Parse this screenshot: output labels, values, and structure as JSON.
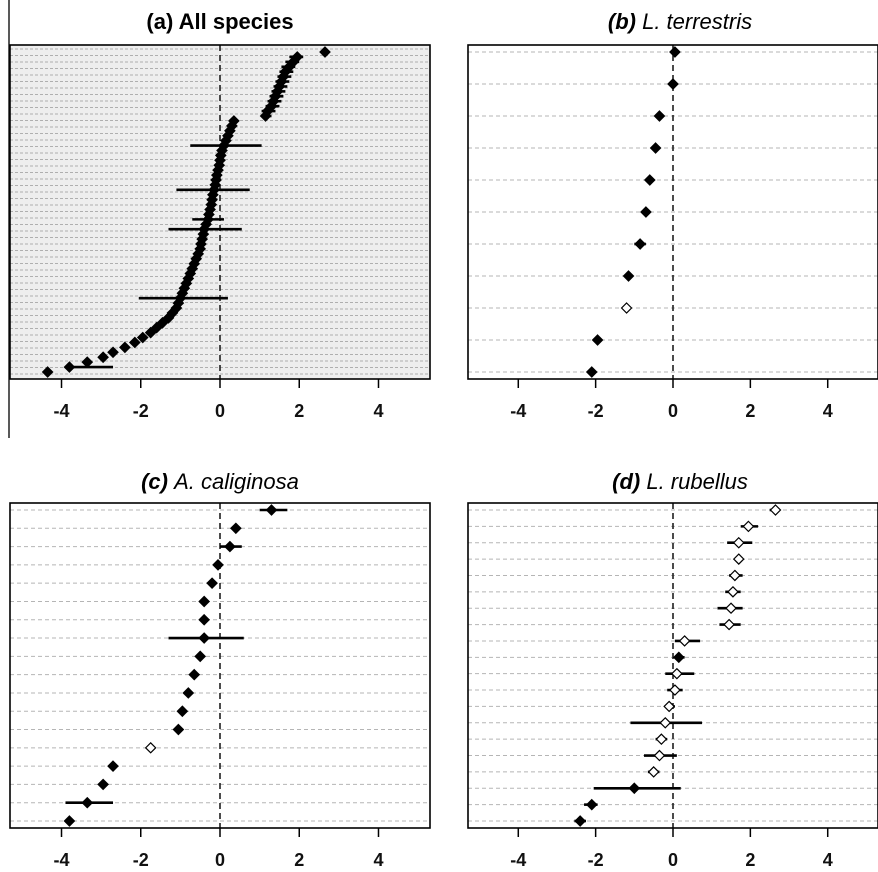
{
  "chart_data": [
    {
      "type": "scatter",
      "panel": "a",
      "title_prefix": "(a)",
      "title_name": "All species",
      "title_italic": false,
      "xlim": [
        -5.3,
        5.3
      ],
      "xticks": [
        -4,
        -2,
        0,
        2,
        4
      ],
      "tick_labels": [
        "-4",
        "-2",
        "0",
        "2",
        "4"
      ],
      "reference_x": 0,
      "grid": true,
      "points": [
        {
          "x": 2.65,
          "lo": 2.6,
          "hi": 2.7,
          "open": false
        },
        {
          "x": 1.95,
          "lo": 1.75,
          "hi": 2.1,
          "open": false
        },
        {
          "x": 1.85,
          "lo": 1.65,
          "hi": 2.0,
          "open": false
        },
        {
          "x": 1.75,
          "lo": 1.55,
          "hi": 1.9,
          "open": false
        },
        {
          "x": 1.65,
          "lo": 1.5,
          "hi": 1.85,
          "open": false
        },
        {
          "x": 1.6,
          "lo": 1.45,
          "hi": 1.8,
          "open": false
        },
        {
          "x": 1.55,
          "lo": 1.4,
          "hi": 1.75,
          "open": false
        },
        {
          "x": 1.5,
          "lo": 1.35,
          "hi": 1.7,
          "open": false
        },
        {
          "x": 1.45,
          "lo": 1.3,
          "hi": 1.65,
          "open": false
        },
        {
          "x": 1.4,
          "lo": 1.25,
          "hi": 1.6,
          "open": false
        },
        {
          "x": 1.35,
          "lo": 1.2,
          "hi": 1.55,
          "open": false
        },
        {
          "x": 1.3,
          "lo": 1.15,
          "hi": 1.5,
          "open": false
        },
        {
          "x": 1.2,
          "lo": 1.05,
          "hi": 1.4,
          "open": false
        },
        {
          "x": 1.15,
          "lo": 1.05,
          "hi": 1.3,
          "open": false
        },
        {
          "x": 0.35,
          "lo": 0.3,
          "hi": 0.45,
          "open": false
        },
        {
          "x": 0.3,
          "lo": 0.2,
          "hi": 0.4,
          "open": false
        },
        {
          "x": 0.25,
          "lo": 0.15,
          "hi": 0.35,
          "open": false
        },
        {
          "x": 0.2,
          "lo": 0.1,
          "hi": 0.3,
          "open": false
        },
        {
          "x": 0.15,
          "lo": 0.05,
          "hi": 0.25,
          "open": false
        },
        {
          "x": 0.1,
          "lo": -0.75,
          "hi": 1.05,
          "open": false
        },
        {
          "x": 0.05,
          "lo": -0.05,
          "hi": 0.15,
          "open": false
        },
        {
          "x": 0.02,
          "lo": -0.1,
          "hi": 0.12,
          "open": false
        },
        {
          "x": 0.0,
          "lo": -0.1,
          "hi": 0.1,
          "open": false
        },
        {
          "x": -0.02,
          "lo": -0.12,
          "hi": 0.08,
          "open": false
        },
        {
          "x": -0.05,
          "lo": -0.15,
          "hi": 0.05,
          "open": false
        },
        {
          "x": -0.08,
          "lo": -0.18,
          "hi": 0.02,
          "open": false
        },
        {
          "x": -0.1,
          "lo": -0.2,
          "hi": 0.0,
          "open": false
        },
        {
          "x": -0.12,
          "lo": -0.22,
          "hi": -0.02,
          "open": false
        },
        {
          "x": -0.15,
          "lo": -1.1,
          "hi": 0.75,
          "open": false
        },
        {
          "x": -0.18,
          "lo": -0.28,
          "hi": -0.08,
          "open": false
        },
        {
          "x": -0.2,
          "lo": -0.3,
          "hi": -0.1,
          "open": false
        },
        {
          "x": -0.22,
          "lo": -0.32,
          "hi": -0.12,
          "open": false
        },
        {
          "x": -0.25,
          "lo": -0.35,
          "hi": -0.15,
          "open": false
        },
        {
          "x": -0.28,
          "lo": -0.38,
          "hi": -0.18,
          "open": false
        },
        {
          "x": -0.3,
          "lo": -0.7,
          "hi": 0.1,
          "open": false
        },
        {
          "x": -0.35,
          "lo": -0.45,
          "hi": -0.25,
          "open": false
        },
        {
          "x": -0.4,
          "lo": -1.3,
          "hi": 0.55,
          "open": false
        },
        {
          "x": -0.42,
          "lo": -0.52,
          "hi": -0.32,
          "open": false
        },
        {
          "x": -0.45,
          "lo": -0.55,
          "hi": -0.35,
          "open": false
        },
        {
          "x": -0.48,
          "lo": -0.58,
          "hi": -0.38,
          "open": false
        },
        {
          "x": -0.5,
          "lo": -0.6,
          "hi": -0.4,
          "open": false
        },
        {
          "x": -0.55,
          "lo": -0.65,
          "hi": -0.45,
          "open": false
        },
        {
          "x": -0.6,
          "lo": -0.7,
          "hi": -0.5,
          "open": false
        },
        {
          "x": -0.65,
          "lo": -0.75,
          "hi": -0.55,
          "open": false
        },
        {
          "x": -0.7,
          "lo": -0.8,
          "hi": -0.6,
          "open": false
        },
        {
          "x": -0.75,
          "lo": -0.85,
          "hi": -0.65,
          "open": false
        },
        {
          "x": -0.8,
          "lo": -0.9,
          "hi": -0.7,
          "open": false
        },
        {
          "x": -0.85,
          "lo": -0.95,
          "hi": -0.75,
          "open": false
        },
        {
          "x": -0.9,
          "lo": -1.0,
          "hi": -0.8,
          "open": false
        },
        {
          "x": -0.95,
          "lo": -1.05,
          "hi": -0.85,
          "open": false
        },
        {
          "x": -1.0,
          "lo": -2.05,
          "hi": 0.2,
          "open": false
        },
        {
          "x": -1.05,
          "lo": -1.15,
          "hi": -0.95,
          "open": false
        },
        {
          "x": -1.1,
          "lo": -1.2,
          "hi": -1.0,
          "open": false
        },
        {
          "x": -1.2,
          "lo": -1.3,
          "hi": -1.1,
          "open": false
        },
        {
          "x": -1.3,
          "lo": -1.4,
          "hi": -1.2,
          "open": false
        },
        {
          "x": -1.45,
          "lo": -1.55,
          "hi": -1.35,
          "open": false
        },
        {
          "x": -1.6,
          "lo": -1.7,
          "hi": -1.5,
          "open": false
        },
        {
          "x": -1.75,
          "lo": -1.85,
          "hi": -1.65,
          "open": false
        },
        {
          "x": -1.95,
          "lo": -2.05,
          "hi": -1.85,
          "open": false
        },
        {
          "x": -2.15,
          "lo": -2.25,
          "hi": -2.05,
          "open": false
        },
        {
          "x": -2.4,
          "lo": -2.5,
          "hi": -2.3,
          "open": false
        },
        {
          "x": -2.7,
          "lo": -2.8,
          "hi": -2.6,
          "open": false
        },
        {
          "x": -2.95,
          "lo": -3.05,
          "hi": -2.85,
          "open": false
        },
        {
          "x": -3.35,
          "lo": -3.45,
          "hi": -3.25,
          "open": false
        },
        {
          "x": -3.8,
          "lo": -3.85,
          "hi": -2.7,
          "open": false
        },
        {
          "x": -4.35,
          "lo": -4.4,
          "hi": -4.3,
          "open": false
        }
      ]
    },
    {
      "type": "scatter",
      "panel": "b",
      "title_prefix": "(b)",
      "title_name": "L. terrestris",
      "title_italic": true,
      "xlim": [
        -5.3,
        5.3
      ],
      "xticks": [
        -4,
        -2,
        0,
        2,
        4
      ],
      "tick_labels": [
        "-4",
        "-2",
        "0",
        "2",
        "4"
      ],
      "reference_x": 0,
      "grid": true,
      "points": [
        {
          "x": 0.05,
          "lo": 0.05,
          "hi": 0.05,
          "open": false
        },
        {
          "x": 0.0,
          "lo": 0.0,
          "hi": 0.0,
          "open": false
        },
        {
          "x": -0.35,
          "lo": -0.35,
          "hi": -0.35,
          "open": false
        },
        {
          "x": -0.45,
          "lo": -0.45,
          "hi": -0.45,
          "open": false
        },
        {
          "x": -0.6,
          "lo": -0.6,
          "hi": -0.6,
          "open": false
        },
        {
          "x": -0.7,
          "lo": -0.7,
          "hi": -0.7,
          "open": false
        },
        {
          "x": -0.85,
          "lo": -1.0,
          "hi": -0.7,
          "open": false
        },
        {
          "x": -1.15,
          "lo": -1.15,
          "hi": -1.15,
          "open": false
        },
        {
          "x": -1.2,
          "lo": -1.2,
          "hi": -1.2,
          "open": true
        },
        {
          "x": -1.95,
          "lo": -1.95,
          "hi": -1.95,
          "open": false
        },
        {
          "x": -2.1,
          "lo": -2.1,
          "hi": -2.1,
          "open": false
        }
      ]
    },
    {
      "type": "scatter",
      "panel": "c",
      "title_prefix": "(c)",
      "title_name": "A. caliginosa",
      "title_italic": true,
      "xlim": [
        -5.3,
        5.3
      ],
      "xticks": [
        -4,
        -2,
        0,
        2,
        4
      ],
      "tick_labels": [
        "-4",
        "-2",
        "0",
        "2",
        "4"
      ],
      "reference_x": 0,
      "grid": true,
      "points": [
        {
          "x": 1.3,
          "lo": 1.0,
          "hi": 1.7,
          "open": false
        },
        {
          "x": 0.4,
          "lo": 0.35,
          "hi": 0.45,
          "open": false
        },
        {
          "x": 0.25,
          "lo": 0.0,
          "hi": 0.55,
          "open": false
        },
        {
          "x": -0.05,
          "lo": -0.05,
          "hi": -0.05,
          "open": false
        },
        {
          "x": -0.2,
          "lo": -0.2,
          "hi": -0.2,
          "open": false
        },
        {
          "x": -0.4,
          "lo": -0.4,
          "hi": -0.4,
          "open": false
        },
        {
          "x": -0.4,
          "lo": -0.4,
          "hi": -0.4,
          "open": false
        },
        {
          "x": -0.4,
          "lo": -1.3,
          "hi": 0.6,
          "open": false
        },
        {
          "x": -0.5,
          "lo": -0.5,
          "hi": -0.5,
          "open": false
        },
        {
          "x": -0.65,
          "lo": -0.65,
          "hi": -0.65,
          "open": false
        },
        {
          "x": -0.8,
          "lo": -0.8,
          "hi": -0.8,
          "open": false
        },
        {
          "x": -0.95,
          "lo": -0.95,
          "hi": -0.95,
          "open": false
        },
        {
          "x": -1.05,
          "lo": -1.05,
          "hi": -1.05,
          "open": false
        },
        {
          "x": -1.75,
          "lo": -1.75,
          "hi": -1.75,
          "open": true
        },
        {
          "x": -2.7,
          "lo": -2.7,
          "hi": -2.7,
          "open": false
        },
        {
          "x": -2.95,
          "lo": -2.95,
          "hi": -2.95,
          "open": false
        },
        {
          "x": -3.35,
          "lo": -3.9,
          "hi": -2.7,
          "open": false
        },
        {
          "x": -3.8,
          "lo": -3.8,
          "hi": -3.8,
          "open": false
        }
      ]
    },
    {
      "type": "scatter",
      "panel": "d",
      "title_prefix": "(d)",
      "title_name": "L. rubellus",
      "title_italic": true,
      "xlim": [
        -5.3,
        5.3
      ],
      "xticks": [
        -4,
        -2,
        0,
        2,
        4
      ],
      "tick_labels": [
        "-4",
        "-2",
        "0",
        "2",
        "4"
      ],
      "reference_x": 0,
      "grid": true,
      "points": [
        {
          "x": 2.65,
          "lo": 2.5,
          "hi": 2.75,
          "open": true
        },
        {
          "x": 1.95,
          "lo": 1.75,
          "hi": 2.2,
          "open": true
        },
        {
          "x": 1.7,
          "lo": 1.4,
          "hi": 2.05,
          "open": true
        },
        {
          "x": 1.7,
          "lo": 1.6,
          "hi": 1.8,
          "open": true
        },
        {
          "x": 1.6,
          "lo": 1.45,
          "hi": 1.8,
          "open": true
        },
        {
          "x": 1.55,
          "lo": 1.35,
          "hi": 1.75,
          "open": true
        },
        {
          "x": 1.5,
          "lo": 1.15,
          "hi": 1.8,
          "open": true
        },
        {
          "x": 1.45,
          "lo": 1.2,
          "hi": 1.75,
          "open": true
        },
        {
          "x": 0.3,
          "lo": 0.05,
          "hi": 0.7,
          "open": true
        },
        {
          "x": 0.15,
          "lo": 0.05,
          "hi": 0.3,
          "open": false
        },
        {
          "x": 0.1,
          "lo": -0.2,
          "hi": 0.55,
          "open": true
        },
        {
          "x": 0.05,
          "lo": -0.15,
          "hi": 0.25,
          "open": true
        },
        {
          "x": -0.1,
          "lo": -0.2,
          "hi": 0.05,
          "open": true
        },
        {
          "x": -0.2,
          "lo": -1.1,
          "hi": 0.75,
          "open": true
        },
        {
          "x": -0.3,
          "lo": -0.45,
          "hi": -0.15,
          "open": true
        },
        {
          "x": -0.35,
          "lo": -0.75,
          "hi": 0.1,
          "open": true
        },
        {
          "x": -0.5,
          "lo": -0.65,
          "hi": -0.35,
          "open": true
        },
        {
          "x": -1.0,
          "lo": -2.05,
          "hi": 0.2,
          "open": false
        },
        {
          "x": -2.1,
          "lo": -2.3,
          "hi": -1.95,
          "open": false
        },
        {
          "x": -2.4,
          "lo": -2.55,
          "hi": -2.25,
          "open": false
        }
      ]
    }
  ]
}
